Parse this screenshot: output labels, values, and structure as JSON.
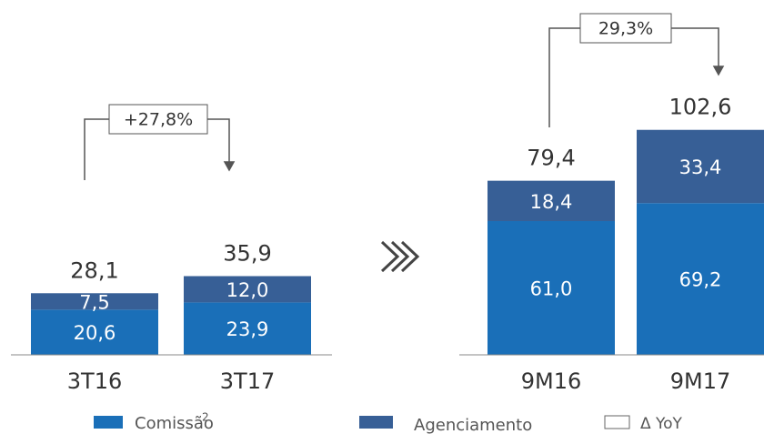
{
  "chart_data": [
    {
      "type": "stacked_bar",
      "categories": [
        "3T16",
        "3T17"
      ],
      "series": [
        {
          "name": "Comissão",
          "color": "#1a6fb8",
          "values": [
            20.6,
            23.9
          ],
          "value_labels": [
            "20,6",
            "23,9"
          ]
        },
        {
          "name": "Agenciamento",
          "color": "#375f96",
          "values": [
            7.5,
            12.0
          ],
          "value_labels": [
            "7,5",
            "12,0"
          ]
        }
      ],
      "totals": [
        28.1,
        35.9
      ],
      "total_labels": [
        "28,1",
        "35,9"
      ],
      "annotation": "+27,8%"
    },
    {
      "type": "stacked_bar",
      "categories": [
        "9M16",
        "9M17"
      ],
      "series": [
        {
          "name": "Comissão",
          "color": "#1a6fb8",
          "values": [
            61.0,
            69.2
          ],
          "value_labels": [
            "61,0",
            "69,2"
          ]
        },
        {
          "name": "Agenciamento",
          "color": "#375f96",
          "values": [
            18.4,
            33.4
          ],
          "value_labels": [
            "18,4",
            "33,4"
          ]
        }
      ],
      "totals": [
        79.4,
        102.6
      ],
      "total_labels": [
        "79,4",
        "102,6"
      ],
      "annotation": "29,3%"
    }
  ],
  "footnote_marker": "2",
  "yoy_label": "Δ YoY"
}
